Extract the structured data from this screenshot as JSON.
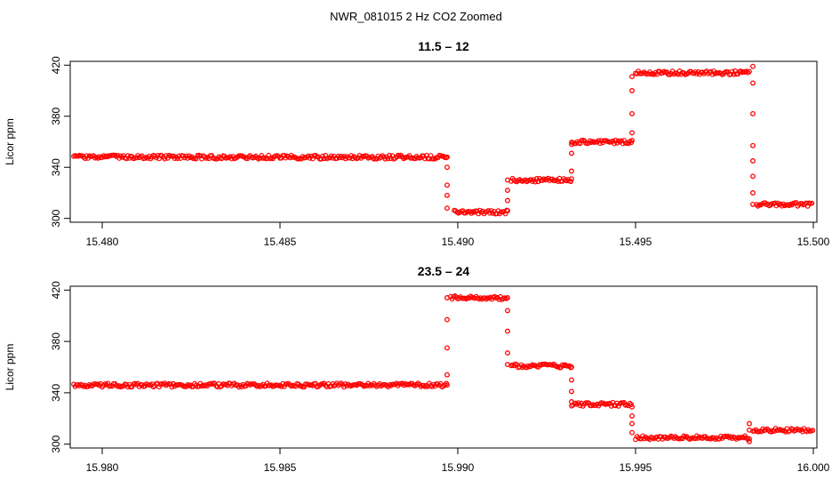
{
  "figure": {
    "title": "NWR_081015  2 Hz CO2 Zoomed",
    "marker_color": "#ff0000"
  },
  "chart_data": [
    {
      "type": "scatter",
      "title": "11.5 – 12",
      "xlabel": "",
      "ylabel": "Licor ppm",
      "xlim": [
        15.4791,
        15.5001
      ],
      "ylim": [
        297,
        423
      ],
      "xticks": [
        15.48,
        15.485,
        15.49,
        15.495,
        15.5
      ],
      "xtick_labels": [
        "15.480",
        "15.485",
        "15.490",
        "15.495",
        "15.500"
      ],
      "yticks": [
        300,
        340,
        380,
        420
      ],
      "ytick_labels": [
        "300",
        "340",
        "380",
        "420"
      ],
      "grid": false,
      "levels": [
        {
          "x": [
            15.4792,
            15.4897
          ],
          "y": 348
        },
        {
          "x": [
            15.4899,
            15.4914
          ],
          "y": 305
        },
        {
          "x": [
            15.4915,
            15.4932
          ],
          "y": 330
        },
        {
          "x": [
            15.4932,
            15.4949
          ],
          "y": 360
        },
        {
          "x": [
            15.495,
            15.4982
          ],
          "y": 414
        },
        {
          "x": [
            15.4984,
            15.5
          ],
          "y": 311
        }
      ],
      "transitions": [
        {
          "x": 15.4897,
          "y": [
            348,
            340,
            326,
            318,
            308
          ]
        },
        {
          "x": 15.4914,
          "y": [
            306,
            314,
            322,
            330
          ]
        },
        {
          "x": 15.4932,
          "y": [
            331,
            337,
            351,
            358
          ]
        },
        {
          "x": 15.4949,
          "y": [
            361,
            367,
            382,
            400,
            411
          ]
        },
        {
          "x": 15.4983,
          "y": [
            419,
            406,
            382,
            357,
            345,
            333,
            320,
            311
          ]
        }
      ]
    },
    {
      "type": "scatter",
      "title": "23.5 – 24",
      "xlabel": "",
      "ylabel": "Licor ppm",
      "xlim": [
        15.9791,
        16.0001
      ],
      "ylim": [
        297,
        423
      ],
      "xticks": [
        15.98,
        15.985,
        15.99,
        15.995,
        16.0
      ],
      "xtick_labels": [
        "15.980",
        "15.985",
        "15.990",
        "15.995",
        "16.000"
      ],
      "yticks": [
        300,
        340,
        380,
        420
      ],
      "ytick_labels": [
        "300",
        "340",
        "380",
        "420"
      ],
      "grid": false,
      "levels": [
        {
          "x": [
            15.9792,
            15.9897
          ],
          "y": 346
        },
        {
          "x": [
            15.9898,
            15.9914
          ],
          "y": 414
        },
        {
          "x": [
            15.9915,
            15.9932
          ],
          "y": 361
        },
        {
          "x": [
            15.9932,
            15.9949
          ],
          "y": 331
        },
        {
          "x": [
            15.995,
            15.9982
          ],
          "y": 305
        },
        {
          "x": [
            15.9983,
            16.0
          ],
          "y": 311
        }
      ],
      "transitions": [
        {
          "x": 15.9897,
          "y": [
            346,
            354,
            375,
            397,
            414
          ]
        },
        {
          "x": 15.9914,
          "y": [
            414,
            404,
            388,
            371,
            362
          ]
        },
        {
          "x": 15.9932,
          "y": [
            360,
            350,
            341,
            333
          ]
        },
        {
          "x": 15.9949,
          "y": [
            329,
            322,
            316,
            309
          ]
        },
        {
          "x": 15.9982,
          "y": [
            302,
            316,
            311
          ]
        }
      ]
    }
  ]
}
